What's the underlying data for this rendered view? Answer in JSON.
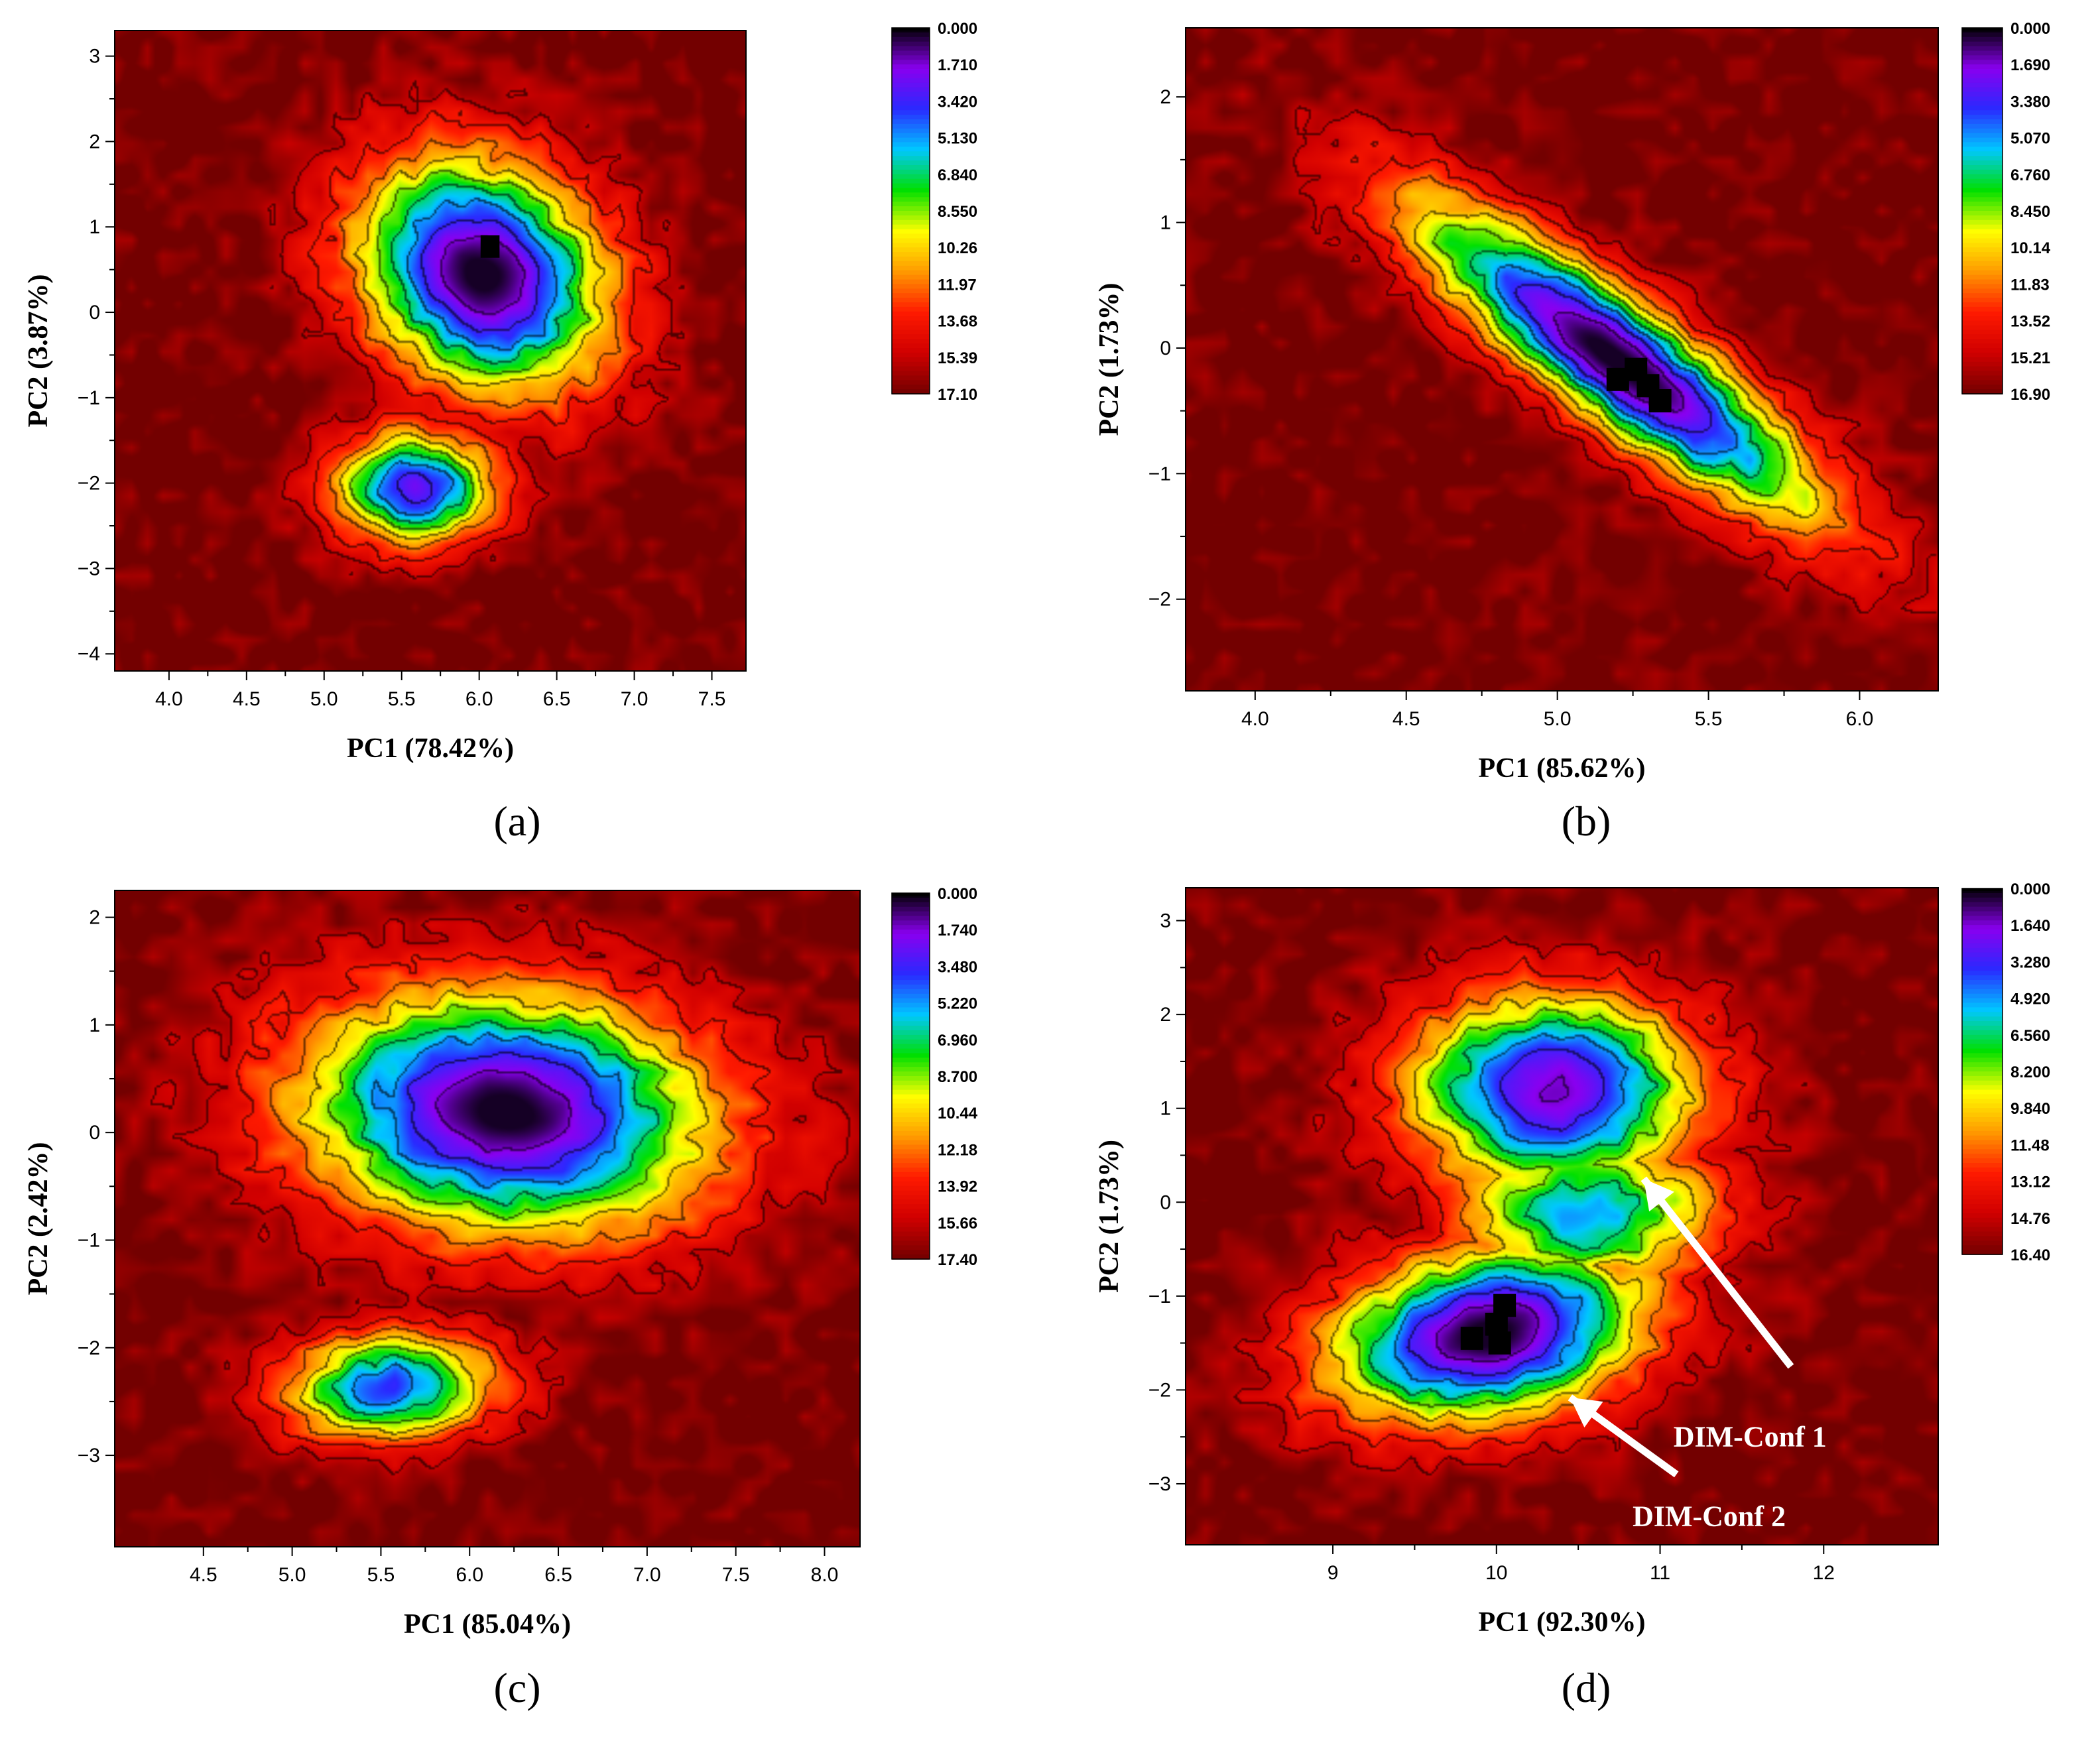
{
  "figure": {
    "colormap": [
      "#000000",
      "#8a00f0",
      "#2a2aff",
      "#00c8ff",
      "#00e000",
      "#ffff00",
      "#ff9a00",
      "#ff1a00",
      "#d00000",
      "#730000"
    ],
    "background_color": "#730000",
    "annotation_color": "#ffffff"
  },
  "chart_data": [
    {
      "type": "heatmap",
      "panel_label": "(a)",
      "xlabel": "PC1 (78.42%)",
      "ylabel": "PC2 (3.87%)",
      "xlim": [
        3.65,
        7.72
      ],
      "ylim": [
        -4.2,
        3.3
      ],
      "xticks": [
        4.0,
        4.5,
        5.0,
        5.5,
        6.0,
        6.5,
        7.0,
        7.5
      ],
      "xtick_labels": [
        "4.0",
        "4.5",
        "5.0",
        "5.5",
        "6.0",
        "6.5",
        "7.0",
        "7.5"
      ],
      "yticks": [
        -4,
        -3,
        -2,
        -1,
        0,
        1,
        2,
        3
      ],
      "ytick_labels": [
        "−4",
        "−3",
        "−2",
        "−1",
        "0",
        "1",
        "2",
        "3"
      ],
      "colorbar_labels": [
        "0.000",
        "1.710",
        "3.420",
        "5.130",
        "6.840",
        "8.550",
        "10.26",
        "11.97",
        "13.68",
        "15.39",
        "17.10"
      ],
      "colorbar_max": 17.1,
      "minima": [
        {
          "x": 6.02,
          "y": 0.45,
          "sx": 0.5,
          "sy": 0.85,
          "rho": -0.2,
          "depth": 17.1
        },
        {
          "x": 5.58,
          "y": -2.05,
          "sx": 0.32,
          "sy": 0.42,
          "rho": 0.0,
          "depth": 14.4
        }
      ],
      "black_cells": [
        {
          "x": 6.07,
          "y": 0.77
        }
      ],
      "annotations": []
    },
    {
      "type": "heatmap",
      "panel_label": "(b)",
      "xlabel": "PC1 (85.62%)",
      "ylabel": "PC2 (1.73%)",
      "xlim": [
        3.77,
        6.26
      ],
      "ylim": [
        -2.73,
        2.55
      ],
      "xticks": [
        4.0,
        4.5,
        5.0,
        5.5,
        6.0
      ],
      "xtick_labels": [
        "4.0",
        "4.5",
        "5.0",
        "5.5",
        "6.0"
      ],
      "yticks": [
        -2,
        -1,
        0,
        1,
        2
      ],
      "ytick_labels": [
        "−2",
        "−1",
        "0",
        "1",
        "2"
      ],
      "colorbar_labels": [
        "0.000",
        "1.690",
        "3.380",
        "5.070",
        "6.760",
        "8.450",
        "10.14",
        "11.83",
        "13.52",
        "15.21",
        "16.90"
      ],
      "colorbar_max": 16.9,
      "minima": [
        {
          "x": 5.2,
          "y": -0.1,
          "sx": 0.42,
          "sy": 0.78,
          "rho": -0.88,
          "depth": 16.9
        }
      ],
      "black_cells": [
        {
          "x": 5.2,
          "y": -0.25
        },
        {
          "x": 5.26,
          "y": -0.17
        },
        {
          "x": 5.3,
          "y": -0.3
        },
        {
          "x": 5.34,
          "y": -0.42
        }
      ],
      "annotations": []
    },
    {
      "type": "heatmap",
      "panel_label": "(c)",
      "xlabel": "PC1 (85.04%)",
      "ylabel": "PC2 (2.42%)",
      "xlim": [
        4.0,
        8.2
      ],
      "ylim": [
        -3.85,
        2.25
      ],
      "xticks": [
        4.5,
        5.0,
        5.5,
        6.0,
        6.5,
        7.0,
        7.5,
        8.0
      ],
      "xtick_labels": [
        "4.5",
        "5.0",
        "5.5",
        "6.0",
        "6.5",
        "7.0",
        "7.5",
        "8.0"
      ],
      "yticks": [
        -3,
        -2,
        -1,
        0,
        1,
        2
      ],
      "ytick_labels": [
        "−3",
        "−2",
        "−1",
        "0",
        "1",
        "2"
      ],
      "colorbar_labels": [
        "0.000",
        "1.740",
        "3.480",
        "5.220",
        "6.960",
        "8.700",
        "10.44",
        "12.18",
        "13.92",
        "15.66",
        "17.40"
      ],
      "colorbar_max": 17.4,
      "minima": [
        {
          "x": 6.2,
          "y": 0.2,
          "sx": 0.72,
          "sy": 0.7,
          "rho": -0.1,
          "depth": 17.4
        },
        {
          "x": 5.55,
          "y": -2.35,
          "sx": 0.38,
          "sy": 0.32,
          "rho": 0.1,
          "depth": 13.2
        }
      ],
      "black_cells": [],
      "annotations": []
    },
    {
      "type": "heatmap",
      "panel_label": "(d)",
      "xlabel": "PC1 (92.30%)",
      "ylabel": "PC2 (1.73%)",
      "xlim": [
        8.1,
        12.7
      ],
      "ylim": [
        -3.65,
        3.35
      ],
      "xticks": [
        9,
        10,
        11,
        12
      ],
      "xtick_labels": [
        "9",
        "10",
        "11",
        "12"
      ],
      "yticks": [
        -3,
        -2,
        -1,
        0,
        1,
        2,
        3
      ],
      "ytick_labels": [
        "−3",
        "−2",
        "−1",
        "0",
        "1",
        "2",
        "3"
      ],
      "colorbar_labels": [
        "0.000",
        "1.640",
        "3.280",
        "4.920",
        "6.560",
        "8.200",
        "9.840",
        "11.48",
        "13.12",
        "14.76",
        "16.40"
      ],
      "colorbar_max": 16.4,
      "minima": [
        {
          "x": 9.95,
          "y": -1.4,
          "sx": 0.6,
          "sy": 0.58,
          "rho": 0.25,
          "depth": 16.4
        },
        {
          "x": 10.35,
          "y": 1.2,
          "sx": 0.55,
          "sy": 0.65,
          "rho": 0.0,
          "depth": 15.0
        },
        {
          "x": 10.55,
          "y": -0.1,
          "sx": 0.5,
          "sy": 0.5,
          "rho": 0.0,
          "depth": 11.5
        }
      ],
      "black_cells": [
        {
          "x": 9.85,
          "y": -1.45
        },
        {
          "x": 10.0,
          "y": -1.3
        },
        {
          "x": 10.05,
          "y": -1.1
        },
        {
          "x": 10.02,
          "y": -1.5
        }
      ],
      "annotations": [
        {
          "text": "DIM-Conf 1",
          "x": 11.55,
          "y": -2.6,
          "tip_x": 10.9,
          "tip_y": 0.25,
          "tail_x": 11.8,
          "tail_y": -1.75
        },
        {
          "text": "DIM-Conf 2",
          "x": 11.3,
          "y": -3.45,
          "tip_x": 10.45,
          "tip_y": -2.08,
          "tail_x": 11.1,
          "tail_y": -2.9
        }
      ]
    }
  ]
}
